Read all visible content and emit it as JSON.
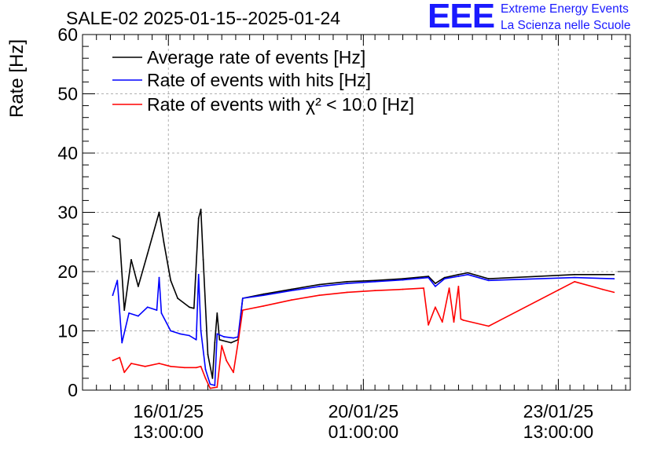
{
  "title": "SALE-02 2025-01-15--2025-01-24",
  "logo": {
    "mark": "EEE",
    "line1": "Extreme Energy Events",
    "line2": "La Scienza nelle Scuole"
  },
  "colors": {
    "average": "#000000",
    "hits": "#0000ff",
    "chi2": "#ff0000",
    "logo": "#1a1aff",
    "grid": "#b0b0b0"
  },
  "chart_data": {
    "type": "line",
    "title": "SALE-02 2025-01-15--2025-01-24",
    "ylabel": "Rate [Hz]",
    "xlabel": "",
    "ylim": [
      0,
      60
    ],
    "xlim": [
      "2025-01-15 00:00",
      "2025-01-24 20:00"
    ],
    "grid": true,
    "legend_position": "top-left",
    "y_ticks": [
      "0",
      "10",
      "20",
      "30",
      "40",
      "50",
      "60"
    ],
    "x_ticks": [
      {
        "date": "2025-01-16 13:00",
        "label_date": "16/01/25",
        "label_time": "13:00:00"
      },
      {
        "date": "2025-01-20 01:00",
        "label_date": "20/01/25",
        "label_time": "01:00:00"
      },
      {
        "date": "2025-01-23 13:00",
        "label_date": "23/01/25",
        "label_time": "13:00:00"
      }
    ],
    "series": [
      {
        "name": "Average rate of events [Hz]",
        "color": "#000000",
        "points": [
          [
            "2025-01-15 13:00",
            26.0
          ],
          [
            "2025-01-15 16:00",
            25.5
          ],
          [
            "2025-01-15 18:00",
            13.5
          ],
          [
            "2025-01-15 21:00",
            22.0
          ],
          [
            "2025-01-16 00:00",
            17.5
          ],
          [
            "2025-01-16 04:00",
            23.0
          ],
          [
            "2025-01-16 09:00",
            30.0
          ],
          [
            "2025-01-16 11:00",
            25.0
          ],
          [
            "2025-01-16 14:00",
            18.5
          ],
          [
            "2025-01-16 17:00",
            15.5
          ],
          [
            "2025-01-16 22:00",
            14.0
          ],
          [
            "2025-01-17 00:00",
            13.8
          ],
          [
            "2025-01-17 02:00",
            29.0
          ],
          [
            "2025-01-17 03:00",
            30.5
          ],
          [
            "2025-01-17 04:00",
            22.0
          ],
          [
            "2025-01-17 06:00",
            6.0
          ],
          [
            "2025-01-17 08:00",
            2.0
          ],
          [
            "2025-01-17 09:00",
            8.0
          ],
          [
            "2025-01-17 10:00",
            13.0
          ],
          [
            "2025-01-17 11:00",
            8.5
          ],
          [
            "2025-01-17 16:00",
            8.0
          ],
          [
            "2025-01-17 19:00",
            8.5
          ],
          [
            "2025-01-17 21:00",
            15.5
          ],
          [
            "2025-01-18 06:00",
            16.2
          ],
          [
            "2025-01-18 18:00",
            17.0
          ],
          [
            "2025-01-19 06:00",
            17.8
          ],
          [
            "2025-01-19 18:00",
            18.3
          ],
          [
            "2025-01-20 06:00",
            18.5
          ],
          [
            "2025-01-20 18:00",
            18.8
          ],
          [
            "2025-01-21 05:00",
            19.2
          ],
          [
            "2025-01-21 08:00",
            18.0
          ],
          [
            "2025-01-21 12:00",
            19.0
          ],
          [
            "2025-01-21 18:00",
            19.5
          ],
          [
            "2025-01-21 22:00",
            19.8
          ],
          [
            "2025-01-22 07:00",
            18.8
          ],
          [
            "2025-01-23 20:00",
            19.5
          ],
          [
            "2025-01-24 13:00",
            19.5
          ]
        ]
      },
      {
        "name": "Rate of events with hits [Hz]",
        "color": "#0000ff",
        "points": [
          [
            "2025-01-15 13:00",
            16.0
          ],
          [
            "2025-01-15 15:00",
            18.5
          ],
          [
            "2025-01-15 17:00",
            8.0
          ],
          [
            "2025-01-15 20:00",
            13.0
          ],
          [
            "2025-01-16 00:00",
            12.5
          ],
          [
            "2025-01-16 04:00",
            14.0
          ],
          [
            "2025-01-16 08:00",
            13.5
          ],
          [
            "2025-01-16 09:00",
            19.0
          ],
          [
            "2025-01-16 10:00",
            13.0
          ],
          [
            "2025-01-16 14:00",
            10.0
          ],
          [
            "2025-01-16 18:00",
            9.5
          ],
          [
            "2025-01-16 22:00",
            9.2
          ],
          [
            "2025-01-17 01:00",
            8.5
          ],
          [
            "2025-01-17 02:00",
            19.5
          ],
          [
            "2025-01-17 03:00",
            10.0
          ],
          [
            "2025-01-17 05:00",
            3.5
          ],
          [
            "2025-01-17 07:00",
            1.0
          ],
          [
            "2025-01-17 09:00",
            0.8
          ],
          [
            "2025-01-17 10:00",
            9.5
          ],
          [
            "2025-01-17 13:00",
            9.0
          ],
          [
            "2025-01-17 17:00",
            8.8
          ],
          [
            "2025-01-17 19:00",
            9.0
          ],
          [
            "2025-01-17 21:00",
            15.5
          ],
          [
            "2025-01-18 06:00",
            16.0
          ],
          [
            "2025-01-18 18:00",
            16.8
          ],
          [
            "2025-01-19 06:00",
            17.5
          ],
          [
            "2025-01-19 18:00",
            18.0
          ],
          [
            "2025-01-20 06:00",
            18.3
          ],
          [
            "2025-01-20 18:00",
            18.6
          ],
          [
            "2025-01-21 05:00",
            19.0
          ],
          [
            "2025-01-21 08:00",
            17.5
          ],
          [
            "2025-01-21 12:00",
            18.8
          ],
          [
            "2025-01-21 18:00",
            19.2
          ],
          [
            "2025-01-21 22:00",
            19.5
          ],
          [
            "2025-01-22 07:00",
            18.5
          ],
          [
            "2025-01-23 20:00",
            19.0
          ],
          [
            "2025-01-24 13:00",
            18.8
          ]
        ]
      },
      {
        "name": "Rate of events with χ² < 10.0 [Hz]",
        "color": "#ff0000",
        "points": [
          [
            "2025-01-15 13:00",
            5.0
          ],
          [
            "2025-01-15 16:00",
            5.5
          ],
          [
            "2025-01-15 18:00",
            3.0
          ],
          [
            "2025-01-15 21:00",
            4.5
          ],
          [
            "2025-01-16 03:00",
            4.0
          ],
          [
            "2025-01-16 09:00",
            4.5
          ],
          [
            "2025-01-16 14:00",
            4.0
          ],
          [
            "2025-01-16 20:00",
            3.8
          ],
          [
            "2025-01-17 01:00",
            3.8
          ],
          [
            "2025-01-17 03:00",
            4.0
          ],
          [
            "2025-01-17 05:00",
            2.0
          ],
          [
            "2025-01-17 07:00",
            0.3
          ],
          [
            "2025-01-17 10:00",
            0.5
          ],
          [
            "2025-01-17 12:00",
            7.5
          ],
          [
            "2025-01-17 14:00",
            5.0
          ],
          [
            "2025-01-17 17:00",
            3.0
          ],
          [
            "2025-01-17 19:00",
            8.0
          ],
          [
            "2025-01-17 21:00",
            13.5
          ],
          [
            "2025-01-18 06:00",
            14.2
          ],
          [
            "2025-01-18 18:00",
            15.2
          ],
          [
            "2025-01-19 06:00",
            16.0
          ],
          [
            "2025-01-19 18:00",
            16.5
          ],
          [
            "2025-01-20 06:00",
            16.8
          ],
          [
            "2025-01-20 18:00",
            17.0
          ],
          [
            "2025-01-21 03:00",
            17.2
          ],
          [
            "2025-01-21 05:00",
            11.0
          ],
          [
            "2025-01-21 08:00",
            14.0
          ],
          [
            "2025-01-21 11:00",
            11.5
          ],
          [
            "2025-01-21 14:00",
            17.2
          ],
          [
            "2025-01-21 16:00",
            11.5
          ],
          [
            "2025-01-21 18:00",
            17.5
          ],
          [
            "2025-01-21 19:00",
            12.0
          ],
          [
            "2025-01-21 20:00",
            11.8
          ],
          [
            "2025-01-22 07:00",
            10.8
          ],
          [
            "2025-01-23 20:00",
            18.3
          ],
          [
            "2025-01-24 08:00",
            17.0
          ],
          [
            "2025-01-24 13:00",
            16.5
          ]
        ]
      }
    ]
  }
}
